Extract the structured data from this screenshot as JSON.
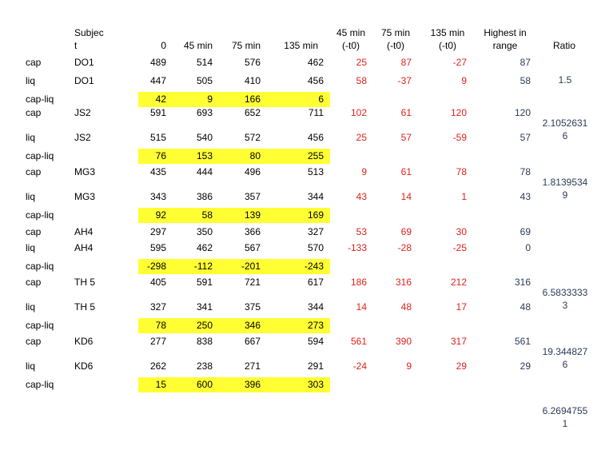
{
  "header": {
    "subject": [
      "Subjec",
      "t"
    ],
    "t0": "0",
    "t45": "45 min",
    "t75": "75 min",
    "t135": "135 min",
    "d45": [
      "45 min",
      "(-t0)"
    ],
    "d75": [
      "75 min",
      "(-t0)"
    ],
    "d135": [
      "135 min",
      "(-t0)"
    ],
    "highest": [
      "Highest in",
      "range"
    ],
    "ratio": "Ratio"
  },
  "rows": [
    {
      "label": "cap",
      "subject": "DO1",
      "v0": "489",
      "v45": "514",
      "v75": "576",
      "v135": "462",
      "d45": "25",
      "d75": "87",
      "d135": "-27",
      "highest": "87"
    },
    {
      "label": "liq",
      "subject": "DO1",
      "v0": "447",
      "v45": "505",
      "v75": "410",
      "v135": "456",
      "d45": "58",
      "d75": "-37",
      "d135": "9",
      "highest": "58"
    },
    {
      "label": "cap-liq",
      "subject": "",
      "v0": "42",
      "v45": "9",
      "v75": "166",
      "v135": "6",
      "hl": true
    },
    {
      "label": "cap",
      "subject": "JS2",
      "v0": "591",
      "v45": "693",
      "v75": "652",
      "v135": "711",
      "d45": "102",
      "d75": "61",
      "d135": "120",
      "highest": "120"
    },
    {
      "label": "liq",
      "subject": "JS2",
      "v0": "515",
      "v45": "540",
      "v75": "572",
      "v135": "456",
      "d45": "25",
      "d75": "57",
      "d135": "-59",
      "highest": "57"
    },
    {
      "label": "cap-liq",
      "subject": "",
      "v0": "76",
      "v45": "153",
      "v75": "80",
      "v135": "255",
      "hl": true
    },
    {
      "label": "cap",
      "subject": "MG3",
      "v0": "435",
      "v45": "444",
      "v75": "496",
      "v135": "513",
      "d45": "9",
      "d75": "61",
      "d135": "78",
      "highest": "78"
    },
    {
      "label": "liq",
      "subject": "MG3",
      "v0": "343",
      "v45": "386",
      "v75": "357",
      "v135": "344",
      "d45": "43",
      "d75": "14",
      "d135": "1",
      "highest": "43"
    },
    {
      "label": "cap-liq",
      "subject": "",
      "v0": "92",
      "v45": "58",
      "v75": "139",
      "v135": "169",
      "hl": true
    },
    {
      "label": "cap",
      "subject": "AH4",
      "v0": "297",
      "v45": "350",
      "v75": "366",
      "v135": "327",
      "d45": "53",
      "d75": "69",
      "d135": "30",
      "highest": "69"
    },
    {
      "label": "liq",
      "subject": "AH4",
      "v0": "595",
      "v45": "462",
      "v75": "567",
      "v135": "570",
      "d45": "-133",
      "d75": "-28",
      "d135": "-25",
      "highest": "0"
    },
    {
      "label": "cap-liq",
      "subject": "",
      "v0": "-298",
      "v45": "-112",
      "v75": "-201",
      "v135": "-243",
      "hl": true
    },
    {
      "label": "cap",
      "subject": "TH 5",
      "v0": "405",
      "v45": "591",
      "v75": "721",
      "v135": "617",
      "d45": "186",
      "d75": "316",
      "d135": "212",
      "highest": "316"
    },
    {
      "label": "liq",
      "subject": "TH 5",
      "v0": "327",
      "v45": "341",
      "v75": "375",
      "v135": "344",
      "d45": "14",
      "d75": "48",
      "d135": "17",
      "highest": "48"
    },
    {
      "label": "cap-liq",
      "subject": "",
      "v0": "78",
      "v45": "250",
      "v75": "346",
      "v135": "273",
      "hl": true
    },
    {
      "label": "cap",
      "subject": "KD6",
      "v0": "277",
      "v45": "838",
      "v75": "667",
      "v135": "594",
      "d45": "561",
      "d75": "390",
      "d135": "317",
      "highest": "561"
    },
    {
      "label": "liq",
      "subject": "KD6",
      "v0": "262",
      "v45": "238",
      "v75": "271",
      "v135": "291",
      "d45": "-24",
      "d75": "9",
      "d135": "29",
      "highest": "29"
    },
    {
      "label": "cap-liq",
      "subject": "",
      "v0": "15",
      "v45": "600",
      "v75": "396",
      "v135": "303",
      "hl": true
    }
  ],
  "ratios": [
    {
      "lines": [
        "1.5"
      ]
    },
    {
      "lines": [
        "2.1052631",
        "6"
      ]
    },
    {
      "lines": [
        "1.8139534",
        "9"
      ]
    },
    {
      "lines": [
        "6.5833333",
        "3"
      ]
    },
    {
      "lines": [
        "19.344827",
        "6"
      ]
    },
    {
      "lines": [
        "6.2694755",
        "1"
      ]
    }
  ]
}
